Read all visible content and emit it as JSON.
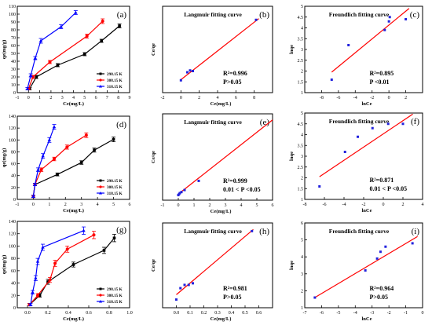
{
  "chart_data": [
    {
      "id": "a",
      "panel_label": "(a)",
      "type": "line",
      "xlabel": "Ce(mg/L)",
      "ylabel": "qe(mg/g)",
      "xlim": [
        -1,
        9
      ],
      "ylim": [
        0,
        110
      ],
      "xticks": [
        -1,
        0,
        1,
        2,
        3,
        4,
        5,
        6,
        7,
        8,
        9
      ],
      "yticks": [
        0,
        10,
        20,
        30,
        40,
        50,
        60,
        70,
        80,
        90,
        100,
        110
      ],
      "xtick_labels": [
        "-1",
        "0",
        "1",
        "2",
        "3",
        "4",
        "5",
        "6",
        "7",
        "8",
        "9"
      ],
      "ytick_labels": [
        "0",
        "10",
        "20",
        "30",
        "40",
        "50",
        "60",
        "70",
        "80",
        "90",
        "100",
        "110"
      ],
      "legend_position": "bottom-right",
      "series": [
        {
          "name": "298.15 K",
          "color": "#000000",
          "marker": "square",
          "x": [
            0.1,
            0.7,
            2.6,
            5.0,
            6.5,
            8.1
          ],
          "y": [
            5,
            20,
            35,
            49,
            66,
            85
          ],
          "err": [
            1.5,
            2,
            2,
            2,
            2,
            2.5
          ]
        },
        {
          "name": "308.15 K",
          "color": "#ff0000",
          "marker": "circle",
          "x": [
            0.0,
            0.4,
            1.9,
            5.2,
            6.6
          ],
          "y": [
            5,
            20,
            39,
            72,
            91
          ],
          "err": [
            1.5,
            2,
            2,
            2.5,
            3
          ]
        },
        {
          "name": "318.15 K",
          "color": "#0000ff",
          "marker": "triangle",
          "x": [
            -0.1,
            0.2,
            0.6,
            1.1,
            2.9,
            4.2
          ],
          "y": [
            5,
            22,
            44,
            66,
            84,
            102
          ],
          "err": [
            1.5,
            2,
            2,
            3,
            2.5,
            2.5
          ]
        }
      ]
    },
    {
      "id": "b",
      "panel_label": "(b)",
      "type": "scatter",
      "title": "Langmuir fitting curve",
      "xlabel": "Ce(mg/L)",
      "ylabel": "Ce/qe",
      "xlim": [
        -2,
        10
      ],
      "ylim": [
        -0.02,
        0.12
      ],
      "xticks": [
        -2,
        0,
        2,
        4,
        6,
        8
      ],
      "xtick_labels": [
        "-2",
        "0",
        "2",
        "4",
        "6",
        "8"
      ],
      "points": {
        "x": [
          0.0,
          0.7,
          1.0,
          1.3,
          8.2
        ],
        "y": [
          0.0,
          0.013,
          0.016,
          0.015,
          0.098
        ]
      },
      "fit_line": {
        "x": [
          0.0,
          8.5
        ],
        "y": [
          0.001,
          0.1
        ]
      },
      "annotations": [
        "R²=0.996",
        "P>0.05"
      ]
    },
    {
      "id": "c",
      "panel_label": "(c)",
      "type": "scatter",
      "title": "Freundlich fitting curve",
      "xlabel": "lnCe",
      "ylabel": "lnqe",
      "xlim": [
        -10,
        4
      ],
      "ylim": [
        1,
        5
      ],
      "xticks": [
        -8,
        -6,
        -4,
        -2,
        0,
        2
      ],
      "yticks": [
        1,
        1.5,
        2,
        2.5,
        3,
        3.5,
        4,
        4.5,
        5
      ],
      "xtick_labels": [
        "-8",
        "-6",
        "-4",
        "-2",
        "0",
        "2"
      ],
      "ytick_labels": [
        "1",
        "1.5",
        "2",
        "2.5",
        "3",
        "3.5",
        "4",
        "4.5",
        "5"
      ],
      "points": {
        "x": [
          -6.8,
          -4.8,
          -0.5,
          0.0,
          0.1,
          2.0
        ],
        "y": [
          1.6,
          3.2,
          3.9,
          4.3,
          4.5,
          4.4
        ]
      },
      "fit_line": {
        "x": [
          -6.8,
          2.4
        ],
        "y": [
          1.95,
          4.9
        ]
      },
      "annotations": [
        "R²=0.895",
        "P <0.01"
      ]
    },
    {
      "id": "d",
      "panel_label": "(d)",
      "type": "line",
      "xlabel": "Ce(mg/L)",
      "ylabel": "qe(mg/g)",
      "xlim": [
        -1,
        6
      ],
      "ylim": [
        0,
        140
      ],
      "xticks": [
        -1,
        0,
        1,
        2,
        3,
        4,
        5,
        6
      ],
      "yticks": [
        0,
        20,
        40,
        60,
        80,
        100,
        120,
        140
      ],
      "xtick_labels": [
        "-1",
        "0",
        "1",
        "2",
        "3",
        "4",
        "5",
        "6"
      ],
      "ytick_labels": [
        "0",
        "20",
        "40",
        "60",
        "80",
        "100",
        "120",
        "140"
      ],
      "legend_position": "bottom-right",
      "series": [
        {
          "name": "298.15 K",
          "color": "#000000",
          "marker": "square",
          "x": [
            0.0,
            0.1,
            1.5,
            3.0,
            3.8,
            5.0
          ],
          "y": [
            5,
            25,
            42,
            62,
            83,
            101
          ],
          "err": [
            2,
            2,
            2.5,
            3,
            3.5,
            4
          ]
        },
        {
          "name": "308.15 K",
          "color": "#ff0000",
          "marker": "circle",
          "x": [
            0.0,
            0.1,
            0.5,
            1.3,
            2.1,
            3.3
          ],
          "y": [
            5,
            25,
            50,
            68,
            88,
            108
          ],
          "err": [
            2,
            2,
            3,
            3,
            3.5,
            4
          ]
        },
        {
          "name": "318.15 K",
          "color": "#0000ff",
          "marker": "triangle",
          "x": [
            0.0,
            0.1,
            0.3,
            0.6,
            1.0,
            1.3
          ],
          "y": [
            5,
            25,
            50,
            73,
            100,
            122
          ],
          "err": [
            2,
            2,
            3,
            4,
            4,
            4
          ]
        }
      ]
    },
    {
      "id": "e",
      "panel_label": "(e)",
      "type": "scatter",
      "title": "Langmuir fitting curve",
      "xlabel": "Ce(mg/L)",
      "ylabel": "Ce/qe",
      "xlim": [
        -1,
        6
      ],
      "ylim": [
        -0.005,
        0.08
      ],
      "xticks": [
        -1,
        0,
        1,
        2,
        3,
        4,
        5,
        6
      ],
      "xtick_labels": [
        "-1",
        "0",
        "1",
        "2",
        "3",
        "4",
        "5",
        "6"
      ],
      "points": {
        "x": [
          0.0,
          0.05,
          0.1,
          0.2,
          0.4,
          1.3
        ],
        "y": [
          0.0,
          0.001,
          0.002,
          0.003,
          0.005,
          0.014
        ]
      },
      "fit_line": {
        "x": [
          0.0,
          6.0
        ],
        "y": [
          0.001,
          0.074
        ]
      },
      "annotations": [
        "R²=0.999",
        "0.01 < P <0.05"
      ]
    },
    {
      "id": "f",
      "panel_label": "(f)",
      "type": "scatter",
      "title": "Freundlich fitting curve",
      "xlabel": "lnCe",
      "ylabel": "lnqe",
      "xlim": [
        -8,
        4
      ],
      "ylim": [
        1,
        5
      ],
      "xticks": [
        -8,
        -6,
        -4,
        -2,
        0,
        2,
        4
      ],
      "yticks": [
        1,
        1.5,
        2,
        2.5,
        3,
        3.5,
        4,
        4.5,
        5
      ],
      "xtick_labels": [
        "-8",
        "-6",
        "-4",
        "-2",
        "0",
        "2",
        "4"
      ],
      "ytick_labels": [
        "1",
        "1.5",
        "2",
        "2.5",
        "3",
        "3.5",
        "4",
        "4.5",
        "5"
      ],
      "points": {
        "x": [
          -6.5,
          -3.9,
          -2.6,
          -1.1,
          0.5,
          2.0
        ],
        "y": [
          1.6,
          3.2,
          3.9,
          4.3,
          4.5,
          4.5
        ]
      },
      "fit_line": {
        "x": [
          -6.5,
          3.0
        ],
        "y": [
          2.05,
          4.95
        ]
      },
      "annotations": [
        "R²=0.871",
        "0.01 < P <0.05"
      ]
    },
    {
      "id": "g",
      "panel_label": "(g)",
      "type": "line",
      "xlabel": "Ce(mg/L)",
      "ylabel": "qe(mg/g)",
      "xlim": [
        -0.1,
        1.0
      ],
      "ylim": [
        0,
        140
      ],
      "xticks": [
        0.0,
        0.2,
        0.4,
        0.6,
        0.8,
        1.0
      ],
      "yticks": [
        0,
        20,
        40,
        60,
        80,
        100,
        120,
        140
      ],
      "xtick_labels": [
        "0.0",
        "0.2",
        "0.4",
        "0.6",
        "0.8",
        "1.0"
      ],
      "ytick_labels": [
        "0",
        "20",
        "40",
        "60",
        "80",
        "100",
        "120",
        "140"
      ],
      "legend_position": "bottom-right",
      "series": [
        {
          "name": "298.15 K",
          "color": "#000000",
          "marker": "square",
          "x": [
            0.02,
            0.12,
            0.2,
            0.45,
            0.75,
            0.85
          ],
          "y": [
            5,
            20,
            42,
            70,
            93,
            113
          ],
          "err": [
            2,
            3,
            4,
            4,
            5,
            6
          ]
        },
        {
          "name": "308.15 K",
          "color": "#ff0000",
          "marker": "circle",
          "x": [
            0.02,
            0.1,
            0.22,
            0.27,
            0.39,
            0.65
          ],
          "y": [
            5,
            20,
            45,
            72,
            95,
            118
          ],
          "err": [
            2,
            3,
            4,
            5,
            5,
            6
          ]
        },
        {
          "name": "318.15 K",
          "color": "#0000ff",
          "marker": "triangle",
          "x": [
            0.03,
            0.05,
            0.08,
            0.1,
            0.15,
            0.55
          ],
          "y": [
            5,
            25,
            48,
            75,
            98,
            125
          ],
          "err": [
            2,
            3,
            4,
            5,
            5,
            6
          ]
        }
      ]
    },
    {
      "id": "h",
      "panel_label": "(h)",
      "type": "scatter",
      "title": "Langmuir fitting curve",
      "xlabel": "Ce(mg/L)",
      "ylabel": "Ce/qe",
      "xlim": [
        -0.1,
        0.7
      ],
      "ylim": [
        -0.002,
        0.05
      ],
      "xticks": [
        0.0,
        0.1,
        0.2,
        0.3,
        0.4,
        0.5,
        0.6
      ],
      "xtick_labels": [
        "0.0",
        "0.1",
        "0.2",
        "0.3",
        "0.4",
        "0.5",
        "0.6"
      ],
      "points": {
        "x": [
          0.0,
          0.03,
          0.06,
          0.09,
          0.12,
          0.55
        ],
        "y": [
          0.003,
          0.01,
          0.012,
          0.012,
          0.013,
          0.045
        ]
      },
      "fit_line": {
        "x": [
          0.0,
          0.56
        ],
        "y": [
          0.006,
          0.046
        ]
      },
      "annotations": [
        "R²=0.981",
        "P>0.05"
      ]
    },
    {
      "id": "i",
      "panel_label": "(i)",
      "type": "scatter",
      "title": "Freundlich fitting curve",
      "xlabel": "lnCe",
      "ylabel": "lnqe",
      "xlim": [
        -7,
        0
      ],
      "ylim": [
        1,
        6
      ],
      "xticks": [
        -7,
        -6,
        -5,
        -4,
        -3,
        -2,
        -1,
        0
      ],
      "yticks": [
        1,
        2,
        3,
        4,
        5,
        6
      ],
      "xtick_labels": [
        "-7",
        "-6",
        "-5",
        "-4",
        "-3",
        "-2",
        "-1",
        "0"
      ],
      "ytick_labels": [
        "1",
        "2",
        "3",
        "4",
        "5",
        "6"
      ],
      "points": {
        "x": [
          -6.4,
          -3.4,
          -2.7,
          -2.5,
          -2.2,
          -0.6
        ],
        "y": [
          1.6,
          3.2,
          3.9,
          4.3,
          4.6,
          4.8
        ]
      },
      "fit_line": {
        "x": [
          -6.4,
          -0.3
        ],
        "y": [
          1.6,
          5.2
        ]
      },
      "annotations": [
        "R²=0.964",
        "P>0.05"
      ]
    }
  ]
}
